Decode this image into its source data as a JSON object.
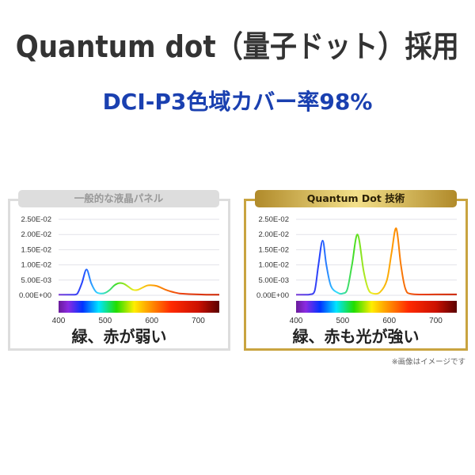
{
  "header": {
    "title": "Quantum dot（量子ドット）採用",
    "subtitle": "DCI-P3色域カバー率98%"
  },
  "colors": {
    "title": "#333333",
    "subtitle": "#1a40b0",
    "left_frame": "#dddddd",
    "right_frame": "#c9a440"
  },
  "note": "※画像はイメージです",
  "chart_data": [
    {
      "type": "line",
      "title": "一般的な液晶パネル",
      "caption": "緑、赤が弱い",
      "x_ticks": [
        "400",
        "500",
        "600",
        "700"
      ],
      "y_ticks": [
        "0.00E+00",
        "5.00E-03",
        "1.00E-02",
        "1.50E-02",
        "2.00E-02",
        "2.50E-02"
      ],
      "xlim": [
        400,
        745
      ],
      "ylim": [
        0,
        0.025
      ],
      "grid": true,
      "x": [
        400,
        410,
        420,
        430,
        440,
        450,
        460,
        470,
        480,
        490,
        500,
        510,
        520,
        530,
        540,
        550,
        560,
        570,
        580,
        590,
        600,
        610,
        620,
        630,
        640,
        650,
        660,
        670,
        680,
        700,
        720,
        745
      ],
      "y": [
        0.0002,
        0.0002,
        0.0002,
        0.0002,
        0.0005,
        0.004,
        0.0085,
        0.004,
        0.0012,
        0.0006,
        0.0008,
        0.0018,
        0.0033,
        0.004,
        0.0038,
        0.0028,
        0.0018,
        0.0018,
        0.0025,
        0.0032,
        0.0033,
        0.0031,
        0.0025,
        0.0018,
        0.0013,
        0.0009,
        0.0006,
        0.0005,
        0.0004,
        0.0003,
        0.0002,
        0.0002
      ]
    },
    {
      "type": "line",
      "title": "Quantum Dot 技術",
      "caption": "緑、赤も光が強い",
      "x_ticks": [
        "400",
        "500",
        "600",
        "700"
      ],
      "y_ticks": [
        "0.00E+00",
        "5.00E-03",
        "1.00E-02",
        "1.50E-02",
        "2.00E-02",
        "2.50E-02"
      ],
      "xlim": [
        400,
        745
      ],
      "ylim": [
        0,
        0.025
      ],
      "grid": true,
      "x": [
        400,
        420,
        430,
        440,
        448,
        457,
        465,
        475,
        490,
        500,
        510,
        520,
        532,
        545,
        555,
        565,
        580,
        595,
        605,
        615,
        625,
        635,
        650,
        700,
        745
      ],
      "y": [
        0.0002,
        0.0002,
        0.0003,
        0.0015,
        0.01,
        0.018,
        0.01,
        0.003,
        0.0008,
        0.0006,
        0.002,
        0.01,
        0.02,
        0.008,
        0.002,
        0.0006,
        0.001,
        0.005,
        0.014,
        0.022,
        0.01,
        0.002,
        0.0004,
        0.0003,
        0.0003
      ]
    }
  ]
}
